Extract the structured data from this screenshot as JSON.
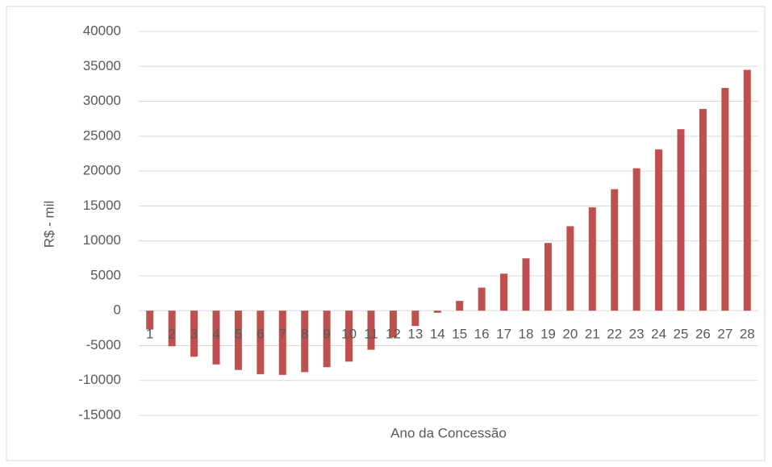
{
  "chart_data": {
    "type": "bar",
    "x_label": "Ano da Concessão",
    "y_label": "R$ - mil",
    "categories": [
      "1",
      "2",
      "3",
      "4",
      "5",
      "6",
      "7",
      "8",
      "9",
      "10",
      "11",
      "12",
      "13",
      "14",
      "15",
      "16",
      "17",
      "18",
      "19",
      "20",
      "21",
      "22",
      "23",
      "24",
      "25",
      "26",
      "27",
      "28"
    ],
    "values": [
      -2700,
      -5100,
      -6600,
      -7700,
      -8500,
      -9100,
      -9200,
      -8800,
      -8100,
      -7300,
      -5600,
      -3800,
      -2200,
      -300,
      1400,
      3300,
      5300,
      7500,
      9700,
      12100,
      14800,
      17400,
      20400,
      23100,
      26000,
      28900,
      31900,
      34500
    ],
    "color": "#c0504d",
    "ylim": [
      -15000,
      40000
    ],
    "yticks": [
      -15000,
      -10000,
      -5000,
      0,
      5000,
      10000,
      15000,
      20000,
      25000,
      30000,
      35000,
      40000
    ],
    "grid": true
  }
}
